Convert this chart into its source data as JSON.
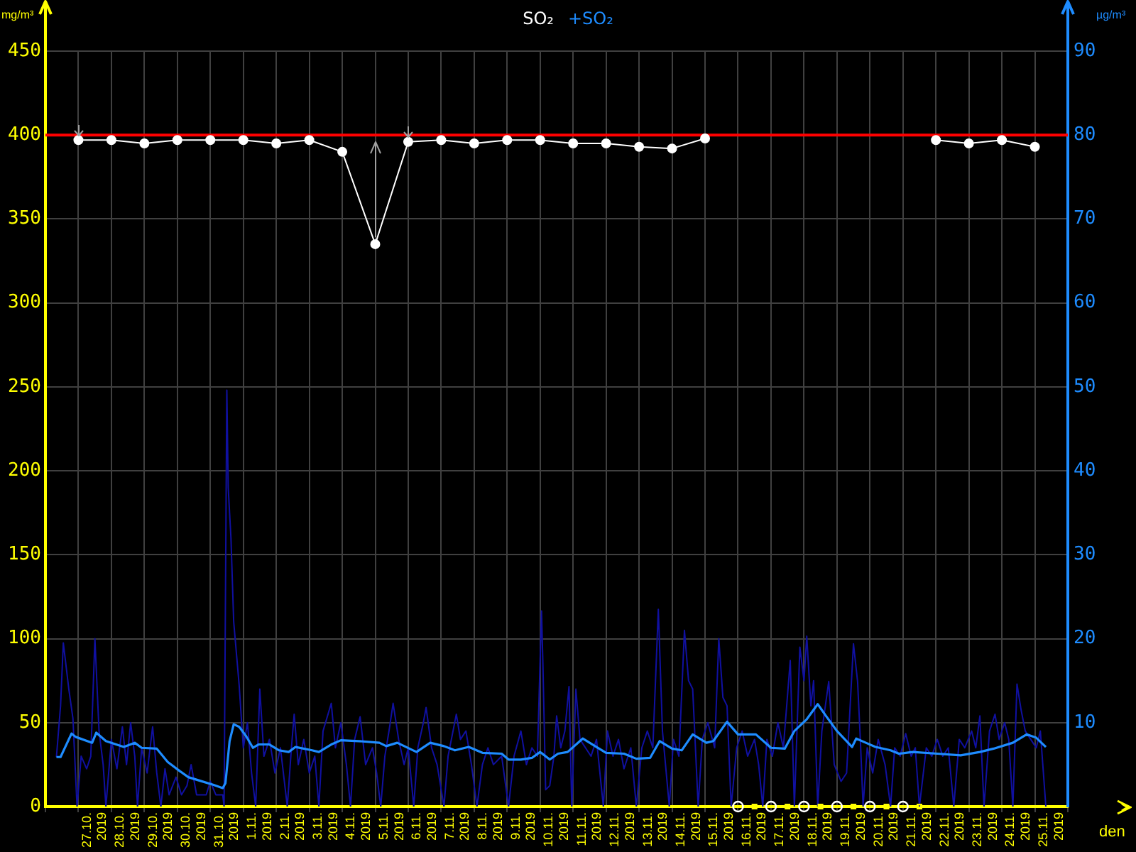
{
  "chart_data": {
    "type": "line",
    "xlabel": "den",
    "ylabel": "mg/m³",
    "y2label": "µg/m³",
    "legend": "top",
    "grid": true,
    "xlim": [
      "2019-10-26",
      "2019-11-26"
    ],
    "xticks": [
      {
        "value": "2019-10-26",
        "label": null
      },
      {
        "value": "2019-10-27",
        "label": null
      },
      {
        "value": "2019-10-27T12:00",
        "label": "27.10. 2019"
      },
      {
        "value": "2019-10-28",
        "label": null
      },
      {
        "value": "2019-10-28T12:00",
        "label": "28.10. 2019"
      },
      {
        "value": "2019-10-29",
        "label": null
      },
      {
        "value": "2019-10-29T12:00",
        "label": "29.10. 2019"
      },
      {
        "value": "2019-10-30",
        "label": null
      },
      {
        "value": "2019-10-30T12:00",
        "label": "30.10. 2019"
      },
      {
        "value": "2019-10-31",
        "label": null
      },
      {
        "value": "2019-10-31T12:00",
        "label": "31.10. 2019"
      },
      {
        "value": "2019-11-01",
        "label": null
      },
      {
        "value": "2019-11-01T12:00",
        "label": "1.11. 2019"
      },
      {
        "value": "2019-11-02",
        "label": null
      },
      {
        "value": "2019-11-02T12:00",
        "label": "2.11. 2019"
      },
      {
        "value": "2019-11-03",
        "label": null
      },
      {
        "value": "2019-11-03T12:00",
        "label": "3.11. 2019"
      },
      {
        "value": "2019-11-04",
        "label": null
      },
      {
        "value": "2019-11-04T12:00",
        "label": "4.11. 2019"
      },
      {
        "value": "2019-11-05",
        "label": null
      },
      {
        "value": "2019-11-05T12:00",
        "label": "5.11. 2019"
      },
      {
        "value": "2019-11-06",
        "label": null
      },
      {
        "value": "2019-11-06T12:00",
        "label": "6.11. 2019"
      },
      {
        "value": "2019-11-07",
        "label": null
      },
      {
        "value": "2019-11-07T12:00",
        "label": "7.11. 2019"
      },
      {
        "value": "2019-11-08",
        "label": null
      },
      {
        "value": "2019-11-08T12:00",
        "label": "8.11. 2019"
      },
      {
        "value": "2019-11-09",
        "label": null
      },
      {
        "value": "2019-11-09T12:00",
        "label": "9.11. 2019"
      },
      {
        "value": "2019-11-10",
        "label": null
      },
      {
        "value": "2019-11-10T12:00",
        "label": "10.11. 2019"
      },
      {
        "value": "2019-11-11",
        "label": null
      },
      {
        "value": "2019-11-11T12:00",
        "label": "11.11. 2019"
      },
      {
        "value": "2019-11-12",
        "label": null
      },
      {
        "value": "2019-11-12T12:00",
        "label": "12.11. 2019"
      },
      {
        "value": "2019-11-13",
        "label": null
      },
      {
        "value": "2019-11-13T12:00",
        "label": "13.11. 2019"
      },
      {
        "value": "2019-11-14",
        "label": null
      },
      {
        "value": "2019-11-14T12:00",
        "label": "14.11. 2019"
      },
      {
        "value": "2019-11-15",
        "label": null
      },
      {
        "value": "2019-11-15T12:00",
        "label": "15.11. 2019"
      },
      {
        "value": "2019-11-16",
        "label": null
      },
      {
        "value": "2019-11-16T12:00",
        "label": "16.11. 2019"
      },
      {
        "value": "2019-11-17",
        "label": null
      },
      {
        "value": "2019-11-17T12:00",
        "label": "17.11. 2019"
      },
      {
        "value": "2019-11-18",
        "label": null
      },
      {
        "value": "2019-11-18T12:00",
        "label": "18.11. 2019"
      },
      {
        "value": "2019-11-19",
        "label": null
      },
      {
        "value": "2019-11-19T12:00",
        "label": "19.11. 2019"
      },
      {
        "value": "2019-11-20",
        "label": null
      },
      {
        "value": "2019-11-20T12:00",
        "label": "20.11. 2019"
      },
      {
        "value": "2019-11-21",
        "label": null
      },
      {
        "value": "2019-11-21T12:00",
        "label": "21.11. 2019"
      },
      {
        "value": "2019-11-22",
        "label": null
      },
      {
        "value": "2019-11-22T12:00",
        "label": "22.11. 2019"
      },
      {
        "value": "2019-11-23",
        "label": null
      },
      {
        "value": "2019-11-23T12:00",
        "label": "23.11. 2019"
      },
      {
        "value": "2019-11-24",
        "label": null
      },
      {
        "value": "2019-11-24T12:00",
        "label": "24.11. 2019"
      },
      {
        "value": "2019-11-25",
        "label": null
      },
      {
        "value": "2019-11-25T12:00",
        "label": "25.11. 2019"
      },
      {
        "value": "2019-11-26",
        "label": null
      }
    ],
    "ylim": [
      0,
      450
    ],
    "yticks": [
      0,
      50,
      100,
      150,
      200,
      250,
      300,
      350,
      400,
      450
    ],
    "y2lim": [
      0,
      90
    ],
    "y2ticks": [
      10,
      20,
      30,
      40,
      50,
      60,
      70,
      80,
      90
    ],
    "ref_lines": [
      {
        "axis": "y",
        "value": 400,
        "color": "#ff0000"
      }
    ],
    "series": [
      {
        "name": "SO₂",
        "color": "#ffffff",
        "marker": "circle",
        "x": [
          "2019-10-27",
          "2019-10-28",
          "2019-10-29",
          "2019-10-30",
          "2019-10-31",
          "2019-11-01",
          "2019-11-02",
          "2019-11-03",
          "2019-11-04",
          "2019-11-05",
          "2019-11-06",
          "2019-11-07",
          "2019-11-08",
          "2019-11-09",
          "2019-11-10",
          "2019-11-11",
          "2019-11-12",
          "2019-11-13",
          "2019-11-14",
          "2019-11-15",
          "2019-11-16",
          "2019-11-17",
          "2019-11-18",
          "2019-11-19",
          "2019-11-20",
          "2019-11-21",
          "2019-11-22",
          "2019-11-23",
          "2019-11-24",
          "2019-11-25"
        ],
        "values": [
          397,
          397,
          395,
          397,
          397,
          397,
          395,
          397,
          390,
          335,
          396,
          397,
          395,
          397,
          397,
          395,
          395,
          393,
          392,
          398,
          null,
          null,
          null,
          null,
          null,
          null,
          397,
          395,
          397,
          393
        ]
      },
      {
        "color": "#1010a0",
        "axis": "y2",
        "marker": "none",
        "x": [
          "2019-10-26T08:00",
          "2019-10-26T11:00",
          "2019-10-26T13:00",
          "2019-10-26T17:00",
          "2019-10-26T20:00",
          "2019-10-26T23:00",
          "2019-10-27T02:00",
          "2019-10-27T06:00",
          "2019-10-27T09:00",
          "2019-10-27T12:00",
          "2019-10-27T15:00",
          "2019-10-27T18:00",
          "2019-10-27T20:00",
          "2019-10-28T00:00",
          "2019-10-28T04:00",
          "2019-10-28T08:00",
          "2019-10-28T11:00",
          "2019-10-28T14:00",
          "2019-10-28T17:00",
          "2019-10-28T19:00",
          "2019-10-28T22:00",
          "2019-10-29T02:00",
          "2019-10-29T06:00",
          "2019-10-29T09:00",
          "2019-10-29T12:00",
          "2019-10-29T15:00",
          "2019-10-29T18:00",
          "2019-10-29T23:00",
          "2019-10-30T03:00",
          "2019-10-30T07:00",
          "2019-10-30T10:00",
          "2019-10-30T14:00",
          "2019-10-30T21:00",
          "2019-10-31T00:00",
          "2019-10-31T04:00",
          "2019-10-31T09:00",
          "2019-10-31T10:00",
          "2019-10-31T12:00",
          "2019-10-31T13:00",
          "2019-10-31T15:00",
          "2019-10-31T17:00",
          "2019-10-31T21:00",
          "2019-11-01T00:00",
          "2019-11-01T03:00",
          "2019-11-01T06:00",
          "2019-11-01T09:00",
          "2019-11-01T12:00",
          "2019-11-01T15:00",
          "2019-11-01T19:00",
          "2019-11-01T23:00",
          "2019-11-02T03:00",
          "2019-11-02T08:00",
          "2019-11-02T11:00",
          "2019-11-02T13:00",
          "2019-11-02T16:00",
          "2019-11-02T20:00",
          "2019-11-03T00:00",
          "2019-11-03T04:00",
          "2019-11-03T07:00",
          "2019-11-03T10:00",
          "2019-11-03T16:00",
          "2019-11-03T19:00",
          "2019-11-03T23:00",
          "2019-11-04T03:00",
          "2019-11-04T06:00",
          "2019-11-04T09:00",
          "2019-11-04T13:00",
          "2019-11-04T17:00",
          "2019-11-04T22:00",
          "2019-11-05T01:00",
          "2019-11-05T04:00",
          "2019-11-05T07:00",
          "2019-11-05T10:00",
          "2019-11-05T13:00",
          "2019-11-05T17:00",
          "2019-11-05T21:00",
          "2019-11-06T00:00",
          "2019-11-06T04:00",
          "2019-11-06T07:00",
          "2019-11-06T11:00",
          "2019-11-06T13:00",
          "2019-11-06T17:00",
          "2019-11-06T21:00",
          "2019-11-07T02:00",
          "2019-11-07T05:00",
          "2019-11-07T11:00",
          "2019-11-07T14:00",
          "2019-11-07T18:00",
          "2019-11-07T22:00",
          "2019-11-08T02:00",
          "2019-11-08T06:00",
          "2019-11-08T10:00",
          "2019-11-08T14:00",
          "2019-11-08T20:00",
          "2019-11-09T01:00",
          "2019-11-09T05:00",
          "2019-11-09T10:00",
          "2019-11-09T14:00",
          "2019-11-09T18:00",
          "2019-11-09T22:00",
          "2019-11-10T01:00",
          "2019-11-10T02:00",
          "2019-11-10T04:00",
          "2019-11-10T07:00",
          "2019-11-10T10:00",
          "2019-11-10T12:00",
          "2019-11-10T15:00",
          "2019-11-10T18:00",
          "2019-11-10T21:00",
          "2019-11-10T23:00",
          "2019-11-11T02:00",
          "2019-11-11T05:00",
          "2019-11-11T09:00",
          "2019-11-11T13:00",
          "2019-11-11T17:00",
          "2019-11-11T22:00",
          "2019-11-12T01:00",
          "2019-11-12T05:00",
          "2019-11-12T09:00",
          "2019-11-12T13:00",
          "2019-11-12T18:00",
          "2019-11-12T22:00",
          "2019-11-13T02:00",
          "2019-11-13T06:00",
          "2019-11-13T10:00",
          "2019-11-13T14:00",
          "2019-11-13T17:00",
          "2019-11-13T22:00",
          "2019-11-14T01:00",
          "2019-11-14T05:00",
          "2019-11-14T09:00",
          "2019-11-14T12:00",
          "2019-11-14T15:00",
          "2019-11-14T19:00",
          "2019-11-14T22:00",
          "2019-11-15T02:00",
          "2019-11-15T07:00",
          "2019-11-15T10:00",
          "2019-11-15T13:00",
          "2019-11-15T16:00",
          "2019-11-15T19:00",
          "2019-11-15T23:00",
          "2019-11-16T03:00",
          "2019-11-16T07:00",
          "2019-11-16T12:00",
          "2019-11-16T15:00",
          "2019-11-16T18:00",
          "2019-11-16T21:00",
          "2019-11-17T01:00",
          "2019-11-17T05:00",
          "2019-11-17T09:00",
          "2019-11-17T14:00",
          "2019-11-17T17:00",
          "2019-11-17T21:00",
          "2019-11-18T00:00",
          "2019-11-18T02:00",
          "2019-11-18T05:00",
          "2019-11-18T07:00",
          "2019-11-18T10:00",
          "2019-11-18T13:00",
          "2019-11-18T18:00",
          "2019-11-18T22:00",
          "2019-11-19T03:00",
          "2019-11-19T07:00",
          "2019-11-19T12:00",
          "2019-11-19T15:00",
          "2019-11-19T17:00",
          "2019-11-19T19:00",
          "2019-11-19T22:00",
          "2019-11-20T02:00",
          "2019-11-20T06:00",
          "2019-11-20T11:00",
          "2019-11-20T15:00",
          "2019-11-20T18:00",
          "2019-11-20T22:00",
          "2019-11-21T02:00",
          "2019-11-21T06:00",
          "2019-11-21T09:00",
          "2019-11-21T12:00",
          "2019-11-21T17:00",
          "2019-11-21T21:00",
          "2019-11-22T01:00",
          "2019-11-22T05:00",
          "2019-11-22T09:00",
          "2019-11-22T13:00",
          "2019-11-22T17:00",
          "2019-11-22T21:00",
          "2019-11-23T02:00",
          "2019-11-23T05:00",
          "2019-11-23T08:00",
          "2019-11-23T11:00",
          "2019-11-23T15:00",
          "2019-11-23T19:00",
          "2019-11-23T22:00",
          "2019-11-24T02:00",
          "2019-11-24T05:00",
          "2019-11-24T08:00",
          "2019-11-24T11:00",
          "2019-11-24T14:00",
          "2019-11-24T17:00",
          "2019-11-24T21:00",
          "2019-11-25T01:00",
          "2019-11-25T04:00",
          "2019-11-25T06:00",
          "2019-11-25T08:00"
        ],
        "values": [
          5.9,
          12,
          19.5,
          14,
          10.5,
          0,
          6,
          4.5,
          6,
          20,
          9,
          5,
          0,
          8,
          4.5,
          9.5,
          5,
          10,
          6,
          0,
          7,
          4,
          9.5,
          4,
          0,
          4.5,
          1.4,
          3.5,
          1.4,
          2.5,
          5,
          1.4,
          1.4,
          3,
          1.4,
          1.4,
          0,
          49.6,
          38,
          32,
          22,
          14.4,
          7,
          10,
          4,
          0,
          14,
          6,
          8,
          4,
          7,
          0,
          7,
          11,
          5,
          8,
          4,
          6,
          0,
          9,
          12.3,
          7,
          10,
          5,
          0,
          8,
          10.7,
          5,
          7,
          4,
          0,
          6,
          9,
          12.3,
          8,
          5,
          7,
          0,
          7,
          10,
          11.8,
          7,
          5,
          0,
          6,
          11,
          8,
          9,
          5,
          0,
          5,
          7,
          5,
          6,
          0,
          6,
          9,
          5,
          7,
          6,
          23.3,
          17,
          2,
          2.5,
          6,
          10.8,
          7,
          9,
          14.3,
          0,
          14,
          8,
          7,
          6,
          8,
          0,
          9,
          6,
          8,
          4.5,
          7,
          0,
          7,
          9,
          7,
          23.5,
          9,
          0,
          8,
          6,
          21,
          15,
          14,
          0,
          8,
          10,
          7,
          20,
          13,
          12,
          0,
          7,
          9,
          6,
          8,
          5,
          0,
          8,
          6,
          10,
          7,
          17.4,
          0,
          19,
          15,
          20.3,
          12,
          15,
          0,
          9,
          14.9,
          5,
          3,
          4,
          19.4,
          14.9,
          8,
          0,
          7,
          4,
          8,
          5,
          0,
          7,
          6,
          8.7,
          6,
          7,
          0,
          7,
          6,
          8,
          6,
          7,
          0,
          8,
          7,
          9,
          7,
          10.8,
          0,
          9,
          11,
          8,
          10,
          8,
          0,
          14.6,
          11.5,
          9,
          8,
          7,
          9,
          4.5,
          0
        ]
      },
      {
        "name": "+SO₂",
        "color": "#1e8cff",
        "axis": "y2",
        "marker": "none",
        "x": [
          "2019-10-26T08:00",
          "2019-10-26T11:00",
          "2019-10-26T19:00",
          "2019-10-26T22:00",
          "2019-10-27T10:00",
          "2019-10-27T13:00",
          "2019-10-27T20:00",
          "2019-10-28T09:00",
          "2019-10-28T17:00",
          "2019-10-28T22:00",
          "2019-10-29T09:00",
          "2019-10-29T17:00",
          "2019-10-30T02:00",
          "2019-10-30T08:00",
          "2019-10-30T16:00",
          "2019-10-31T02:00",
          "2019-10-31T09:00",
          "2019-10-31T11:00",
          "2019-10-31T14:00",
          "2019-10-31T17:00",
          "2019-10-31T21:00",
          "2019-11-01T02:00",
          "2019-11-01T07:00",
          "2019-11-01T11:00",
          "2019-11-01T19:00",
          "2019-11-02T02:00",
          "2019-11-02T09:00",
          "2019-11-02T14:00",
          "2019-11-03T02:00",
          "2019-11-03T07:00",
          "2019-11-03T16:00",
          "2019-11-03T23:00",
          "2019-11-04T12:00",
          "2019-11-05T03:00",
          "2019-11-05T08:00",
          "2019-11-05T16:00",
          "2019-11-06T06:00",
          "2019-11-06T16:00",
          "2019-11-07T02:00",
          "2019-11-07T10:00",
          "2019-11-07T20:00",
          "2019-11-08T06:00",
          "2019-11-08T20:00",
          "2019-11-09T01:00",
          "2019-11-09T10:00",
          "2019-11-09T18:00",
          "2019-11-10T00:00",
          "2019-11-10T07:00",
          "2019-11-10T13:00",
          "2019-11-10T20:00",
          "2019-11-11T07:00",
          "2019-11-11T17:00",
          "2019-11-12T00:00",
          "2019-11-12T13:00",
          "2019-11-12T22:00",
          "2019-11-13T08:00",
          "2019-11-13T15:00",
          "2019-11-14T00:00",
          "2019-11-14T07:00",
          "2019-11-14T15:00",
          "2019-11-15T01:00",
          "2019-11-15T06:00",
          "2019-11-15T16:00",
          "2019-11-16T00:00",
          "2019-11-16T13:00",
          "2019-11-17T00:00",
          "2019-11-17T10:00",
          "2019-11-17T17:00",
          "2019-11-18T02:00",
          "2019-11-18T10:00",
          "2019-11-18T16:00",
          "2019-11-19T00:00",
          "2019-11-19T11:00",
          "2019-11-19T14:00",
          "2019-11-19T21:00",
          "2019-11-20T04:00",
          "2019-11-20T15:00",
          "2019-11-20T21:00",
          "2019-11-21T07:00",
          "2019-11-22T01:00",
          "2019-11-22T18:00",
          "2019-11-23T08:00",
          "2019-11-23T18:00",
          "2019-11-24T08:00",
          "2019-11-24T18:00",
          "2019-11-25T01:00",
          "2019-11-25T08:00"
        ],
        "values": [
          5.9,
          5.9,
          8.7,
          8.3,
          7.6,
          8.8,
          7.8,
          7.1,
          7.6,
          7.0,
          6.9,
          5.3,
          4.2,
          3.5,
          3.1,
          2.6,
          2.2,
          2.8,
          7.8,
          9.8,
          9.5,
          8.4,
          7.0,
          7.4,
          7.4,
          6.7,
          6.5,
          7.1,
          6.7,
          6.5,
          7.4,
          7.9,
          7.8,
          7.6,
          7.2,
          7.6,
          6.5,
          7.6,
          7.2,
          6.7,
          7.1,
          6.4,
          6.3,
          5.6,
          5.6,
          5.8,
          6.5,
          5.6,
          6.3,
          6.5,
          8.1,
          7.1,
          6.4,
          6.3,
          5.7,
          5.8,
          7.8,
          6.9,
          6.7,
          8.6,
          7.6,
          7.8,
          10.1,
          8.6,
          8.6,
          7.0,
          6.9,
          9.0,
          10.4,
          12.2,
          10.8,
          9.0,
          7.1,
          8.1,
          7.6,
          7.1,
          6.7,
          6.3,
          6.5,
          6.3,
          6.1,
          6.5,
          6.9,
          7.6,
          8.6,
          8.2,
          7.1
        ]
      },
      {
        "type": "scatter",
        "color": "#ffffff",
        "marker": "circle",
        "x": [
          "2019-11-16",
          "2019-11-17",
          "2019-11-18",
          "2019-11-19",
          "2019-11-20",
          "2019-11-21"
        ],
        "values": [
          0,
          0,
          0,
          0,
          0,
          0
        ]
      },
      {
        "type": "scatter",
        "color": "#ffff00",
        "marker": "square",
        "x": [
          "2019-11-16T12:00",
          "2019-11-17T12:00",
          "2019-11-18T12:00",
          "2019-11-19T12:00",
          "2019-11-20T12:00",
          "2019-11-21T12:00"
        ],
        "values": [
          0,
          0,
          0,
          0,
          0,
          0
        ]
      }
    ]
  }
}
